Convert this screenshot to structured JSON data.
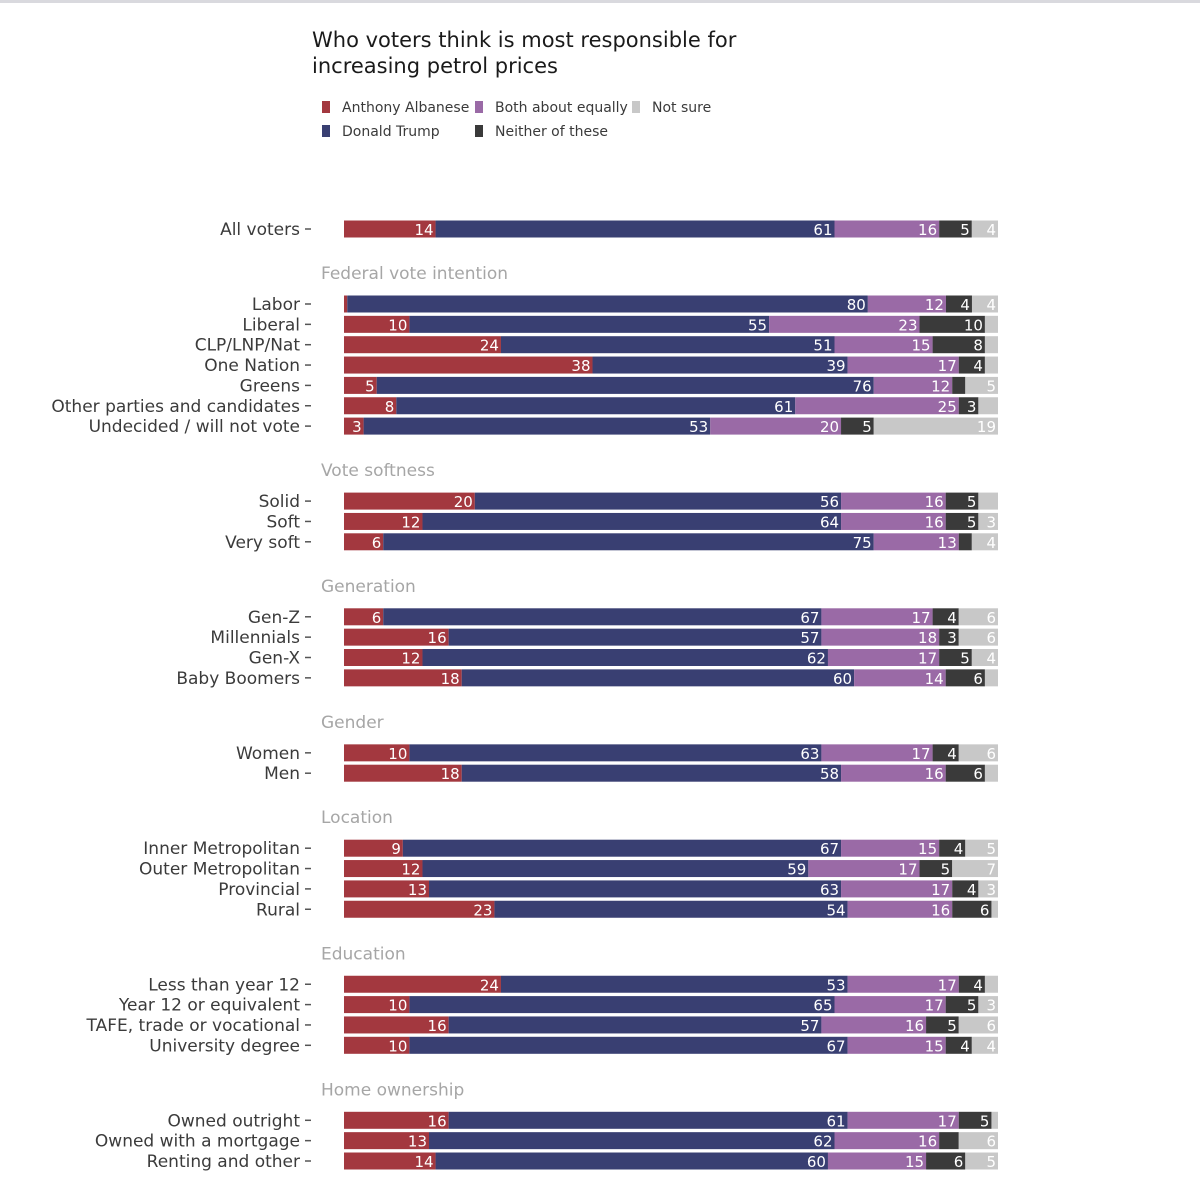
{
  "chart_data": {
    "type": "bar",
    "orientation": "horizontal",
    "stacked": true,
    "title": "Who voters think is most responsible for increasing petrol prices",
    "title_lines": [
      "Who voters think is most responsible for",
      "increasing petrol prices"
    ],
    "xlim": [
      0,
      100
    ],
    "legend": {
      "placement": "top-left",
      "entries": [
        "Anthony Albanese",
        "Both about equally",
        "Not sure",
        "Donald Trump",
        "Neither of these"
      ]
    },
    "series": [
      {
        "name": "Anthony Albanese",
        "color": "#a3383f"
      },
      {
        "name": "Donald Trump",
        "color": "#393f72"
      },
      {
        "name": "Both about equally",
        "color": "#9a6aa6"
      },
      {
        "name": "Neither of these",
        "color": "#3a3a3a"
      },
      {
        "name": "Not sure",
        "color": "#c8c8c8"
      }
    ],
    "groups": [
      {
        "label": "",
        "rows": [
          {
            "label": "All voters",
            "values": [
              14,
              61,
              16,
              5,
              4
            ],
            "labels": [
              "14",
              "61",
              "16",
              "5",
              "4"
            ]
          }
        ]
      },
      {
        "label": "Federal vote intention",
        "rows": [
          {
            "label": "Labor",
            "values": [
              0.5,
              80,
              12,
              4,
              4
            ],
            "labels": [
              "",
              "80",
              "12",
              "4",
              "4"
            ]
          },
          {
            "label": "Liberal",
            "values": [
              10,
              55,
              23,
              10,
              2
            ],
            "labels": [
              "10",
              "55",
              "23",
              "10",
              ""
            ]
          },
          {
            "label": "CLP/LNP/Nat",
            "values": [
              24,
              51,
              15,
              8,
              2
            ],
            "labels": [
              "24",
              "51",
              "15",
              "8",
              ""
            ]
          },
          {
            "label": "One Nation",
            "values": [
              38,
              39,
              17,
              4,
              2
            ],
            "labels": [
              "38",
              "39",
              "17",
              "4",
              ""
            ]
          },
          {
            "label": "Greens",
            "values": [
              5,
              76,
              12,
              2,
              5
            ],
            "labels": [
              "5",
              "76",
              "12",
              "",
              "5"
            ]
          },
          {
            "label": "Other parties and candidates",
            "values": [
              8,
              61,
              25,
              3,
              3
            ],
            "labels": [
              "8",
              "61",
              "25",
              "3",
              ""
            ]
          },
          {
            "label": "Undecided / will not vote",
            "values": [
              3,
              53,
              20,
              5,
              19
            ],
            "labels": [
              "3",
              "53",
              "20",
              "5",
              "19"
            ]
          }
        ]
      },
      {
        "label": "Vote softness",
        "rows": [
          {
            "label": "Solid",
            "values": [
              20,
              56,
              16,
              5,
              3
            ],
            "labels": [
              "20",
              "56",
              "16",
              "5",
              ""
            ]
          },
          {
            "label": "Soft",
            "values": [
              12,
              64,
              16,
              5,
              3
            ],
            "labels": [
              "12",
              "64",
              "16",
              "5",
              "3"
            ]
          },
          {
            "label": "Very soft",
            "values": [
              6,
              75,
              13,
              2,
              4
            ],
            "labels": [
              "6",
              "75",
              "13",
              "",
              "4"
            ]
          }
        ]
      },
      {
        "label": "Generation",
        "rows": [
          {
            "label": "Gen-Z",
            "values": [
              6,
              67,
              17,
              4,
              6
            ],
            "labels": [
              "6",
              "67",
              "17",
              "4",
              "6"
            ]
          },
          {
            "label": "Millennials",
            "values": [
              16,
              57,
              18,
              3,
              6
            ],
            "labels": [
              "16",
              "57",
              "18",
              "3",
              "6"
            ]
          },
          {
            "label": "Gen-X",
            "values": [
              12,
              62,
              17,
              5,
              4
            ],
            "labels": [
              "12",
              "62",
              "17",
              "5",
              "4"
            ]
          },
          {
            "label": "Baby Boomers",
            "values": [
              18,
              60,
              14,
              6,
              2
            ],
            "labels": [
              "18",
              "60",
              "14",
              "6",
              ""
            ]
          }
        ]
      },
      {
        "label": "Gender",
        "rows": [
          {
            "label": "Women",
            "values": [
              10,
              63,
              17,
              4,
              6
            ],
            "labels": [
              "10",
              "63",
              "17",
              "4",
              "6"
            ]
          },
          {
            "label": "Men",
            "values": [
              18,
              58,
              16,
              6,
              2
            ],
            "labels": [
              "18",
              "58",
              "16",
              "6",
              ""
            ]
          }
        ]
      },
      {
        "label": "Location",
        "rows": [
          {
            "label": "Inner Metropolitan",
            "values": [
              9,
              67,
              15,
              4,
              5
            ],
            "labels": [
              "9",
              "67",
              "15",
              "4",
              "5"
            ]
          },
          {
            "label": "Outer Metropolitan",
            "values": [
              12,
              59,
              17,
              5,
              7
            ],
            "labels": [
              "12",
              "59",
              "17",
              "5",
              "7"
            ]
          },
          {
            "label": "Provincial",
            "values": [
              13,
              63,
              17,
              4,
              3
            ],
            "labels": [
              "13",
              "63",
              "17",
              "4",
              "3"
            ]
          },
          {
            "label": "Rural",
            "values": [
              23,
              54,
              16,
              6,
              1
            ],
            "labels": [
              "23",
              "54",
              "16",
              "6",
              ""
            ]
          }
        ]
      },
      {
        "label": "Education",
        "rows": [
          {
            "label": "Less than year 12",
            "values": [
              24,
              53,
              17,
              4,
              2
            ],
            "labels": [
              "24",
              "53",
              "17",
              "4",
              ""
            ]
          },
          {
            "label": "Year 12 or equivalent",
            "values": [
              10,
              65,
              17,
              5,
              3
            ],
            "labels": [
              "10",
              "65",
              "17",
              "5",
              "3"
            ]
          },
          {
            "label": "TAFE, trade or vocational",
            "values": [
              16,
              57,
              16,
              5,
              6
            ],
            "labels": [
              "16",
              "57",
              "16",
              "5",
              "6"
            ]
          },
          {
            "label": "University degree",
            "values": [
              10,
              67,
              15,
              4,
              4
            ],
            "labels": [
              "10",
              "67",
              "15",
              "4",
              "4"
            ]
          }
        ]
      },
      {
        "label": "Home ownership",
        "rows": [
          {
            "label": "Owned outright",
            "values": [
              16,
              61,
              17,
              5,
              1
            ],
            "labels": [
              "16",
              "61",
              "17",
              "5",
              ""
            ]
          },
          {
            "label": "Owned with a mortgage",
            "values": [
              13,
              62,
              16,
              3,
              6
            ],
            "labels": [
              "13",
              "62",
              "16",
              "",
              "6"
            ]
          },
          {
            "label": "Renting and other",
            "values": [
              14,
              60,
              15,
              6,
              5
            ],
            "labels": [
              "14",
              "60",
              "15",
              "6",
              "5"
            ]
          }
        ]
      }
    ]
  }
}
